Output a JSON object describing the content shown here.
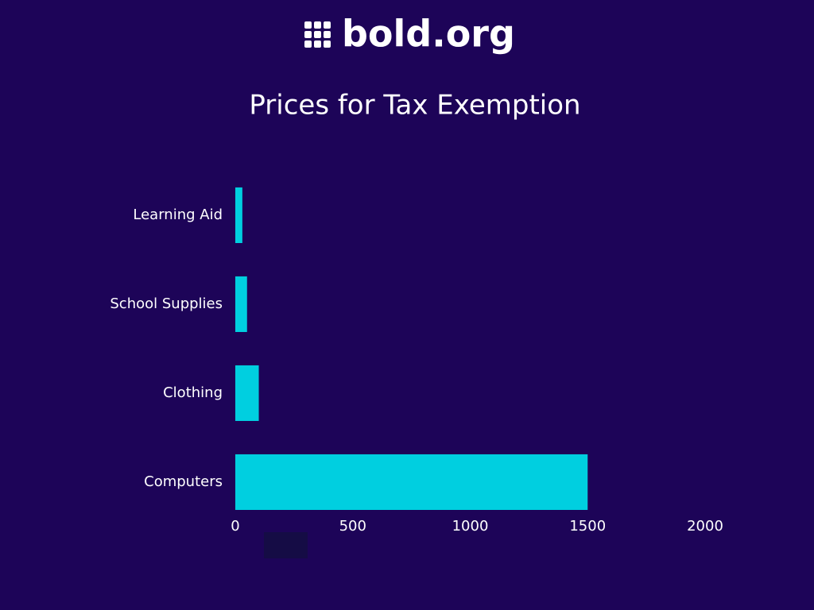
{
  "logo": "bold.org",
  "chart_data": {
    "type": "hbar",
    "title": "Prices for Tax Exemption",
    "categories": [
      "Learning Aid",
      "School Supplies",
      "Clothing",
      "Computers"
    ],
    "values": [
      30,
      50,
      100,
      1500
    ],
    "color": "#00cfe0",
    "xlim": [
      0,
      2000
    ],
    "xticks": [
      0,
      500,
      1000,
      1500,
      2000
    ],
    "grid": false
  }
}
